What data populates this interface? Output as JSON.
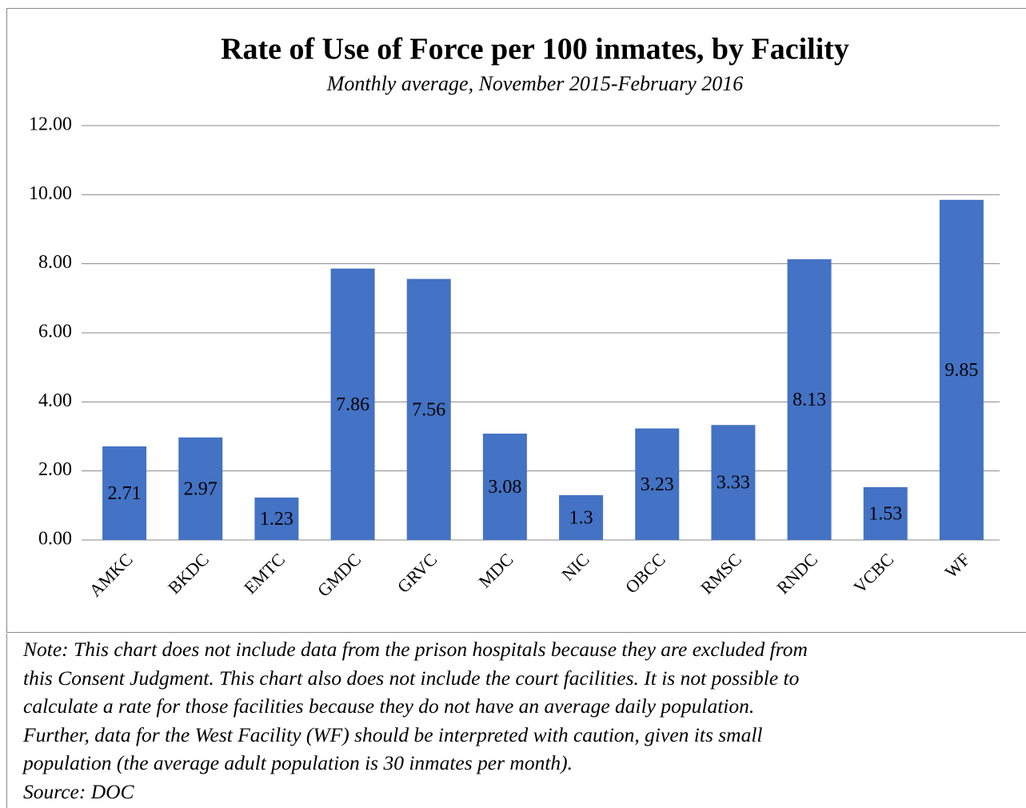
{
  "chart_data": {
    "type": "bar",
    "title": "Rate of Use of Force per 100 inmates, by Facility",
    "subtitle": "Monthly average, November 2015-February 2016",
    "categories": [
      "AMKC",
      "BKDC",
      "EMTC",
      "GMDC",
      "GRVC",
      "MDC",
      "NIC",
      "OBCC",
      "RMSC",
      "RNDC",
      "VCBC",
      "WF"
    ],
    "values": [
      2.71,
      2.97,
      1.23,
      7.86,
      7.56,
      3.08,
      1.3,
      3.23,
      3.33,
      8.13,
      1.53,
      9.85
    ],
    "color": "#4472c4",
    "ylim": [
      0,
      12
    ],
    "yticks": [
      {
        "value": 0,
        "label": "0.00"
      },
      {
        "value": 2,
        "label": "2.00"
      },
      {
        "value": 4,
        "label": "4.00"
      },
      {
        "value": 6,
        "label": "6.00"
      },
      {
        "value": 8,
        "label": "8.00"
      },
      {
        "value": 10,
        "label": "10.00"
      },
      {
        "value": 12,
        "label": "12.00"
      }
    ],
    "grid": true
  },
  "note": {
    "lines": [
      "Note: This chart does not include data from the prison hospitals because they are excluded from",
      "this Consent Judgment. This chart also does not include the court facilities. It is not possible to",
      "calculate a rate for those facilities because they do not have an average daily population.",
      "Further, data for the West Facility (WF) should be interpreted with caution, given its small",
      "population (the average adult population is 30 inmates per month)."
    ],
    "source": "Source: DOC"
  }
}
